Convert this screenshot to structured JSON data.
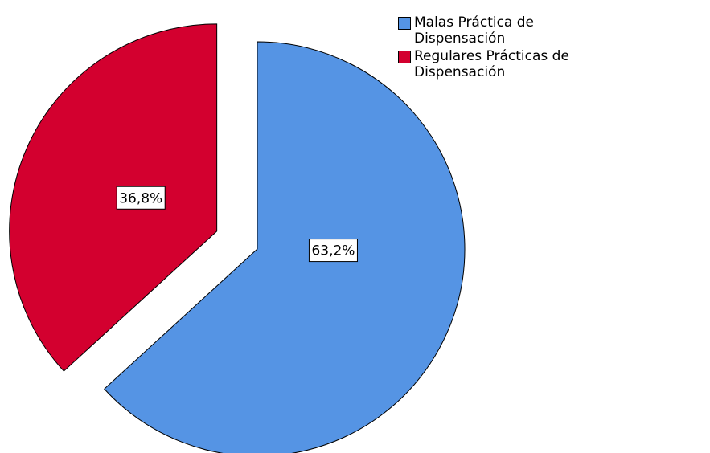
{
  "chart_data": {
    "type": "pie",
    "categories": [
      "Malas Práctica de Dispensación",
      "Regulares Prácticas de Dispensación"
    ],
    "values": [
      63.2,
      36.8
    ],
    "value_labels": [
      "63,2%",
      "36,8%"
    ],
    "colors": [
      "#5594e4",
      "#d3002f"
    ],
    "legend": "top-right"
  }
}
